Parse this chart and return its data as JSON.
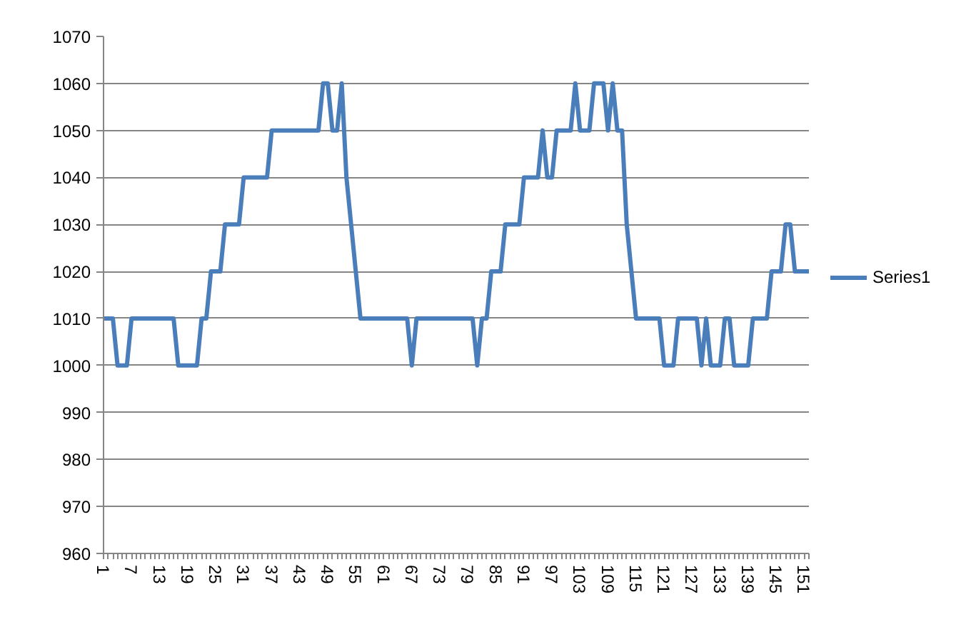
{
  "chart_data": {
    "type": "line",
    "categories": [
      "1",
      null,
      null,
      null,
      null,
      null,
      "7",
      null,
      null,
      null,
      null,
      null,
      "13",
      null,
      null,
      null,
      null,
      null,
      "19",
      null,
      null,
      null,
      null,
      null,
      "25",
      null,
      null,
      null,
      null,
      null,
      "31",
      null,
      null,
      null,
      null,
      null,
      "37",
      null,
      null,
      null,
      null,
      null,
      "43",
      null,
      null,
      null,
      null,
      null,
      "49",
      null,
      null,
      null,
      null,
      null,
      "55",
      null,
      null,
      null,
      null,
      null,
      "61",
      null,
      null,
      null,
      null,
      null,
      "67",
      null,
      null,
      null,
      null,
      null,
      "73",
      null,
      null,
      null,
      null,
      null,
      "79",
      null,
      null,
      null,
      null,
      null,
      "85",
      null,
      null,
      null,
      null,
      null,
      "91",
      null,
      null,
      null,
      null,
      null,
      "97",
      null,
      null,
      null,
      null,
      null,
      "103",
      null,
      null,
      null,
      null,
      null,
      "109",
      null,
      null,
      null,
      null,
      null,
      "115",
      null,
      null,
      null,
      null,
      null,
      "121",
      null,
      null,
      null,
      null,
      null,
      "127",
      null,
      null,
      null,
      null,
      null,
      "133",
      null,
      null,
      null,
      null,
      null,
      "139",
      null,
      null,
      null,
      null,
      null,
      "145",
      null,
      null,
      null,
      null,
      null,
      "151",
      null
    ],
    "series": [
      {
        "name": "Series1",
        "color": "#4a7ebb",
        "values": [
          1010,
          1010,
          1010,
          1000,
          1000,
          1000,
          1010,
          1010,
          1010,
          1010,
          1010,
          1010,
          1010,
          1010,
          1010,
          1010,
          1000,
          1000,
          1000,
          1000,
          1000,
          1010,
          1010,
          1020,
          1020,
          1020,
          1030,
          1030,
          1030,
          1030,
          1040,
          1040,
          1040,
          1040,
          1040,
          1040,
          1050,
          1050,
          1050,
          1050,
          1050,
          1050,
          1050,
          1050,
          1050,
          1050,
          1050,
          1060,
          1060,
          1050,
          1050,
          1060,
          1040,
          1030,
          1020,
          1010,
          1010,
          1010,
          1010,
          1010,
          1010,
          1010,
          1010,
          1010,
          1010,
          1010,
          1000,
          1010,
          1010,
          1010,
          1010,
          1010,
          1010,
          1010,
          1010,
          1010,
          1010,
          1010,
          1010,
          1010,
          1000,
          1010,
          1010,
          1020,
          1020,
          1020,
          1030,
          1030,
          1030,
          1030,
          1040,
          1040,
          1040,
          1040,
          1050,
          1040,
          1040,
          1050,
          1050,
          1050,
          1050,
          1060,
          1050,
          1050,
          1050,
          1060,
          1060,
          1060,
          1050,
          1060,
          1050,
          1050,
          1030,
          1020,
          1010,
          1010,
          1010,
          1010,
          1010,
          1010,
          1000,
          1000,
          1000,
          1010,
          1010,
          1010,
          1010,
          1010,
          1000,
          1010,
          1000,
          1000,
          1000,
          1010,
          1010,
          1000,
          1000,
          1000,
          1000,
          1010,
          1010,
          1010,
          1010,
          1020,
          1020,
          1020,
          1030,
          1030,
          1020,
          1020,
          1020,
          1020
        ]
      }
    ],
    "ylim": [
      960,
      1070
    ],
    "yticks": [
      960,
      970,
      980,
      990,
      1000,
      1010,
      1020,
      1030,
      1040,
      1050,
      1060,
      1070
    ],
    "grid": "y",
    "legend": "right"
  }
}
